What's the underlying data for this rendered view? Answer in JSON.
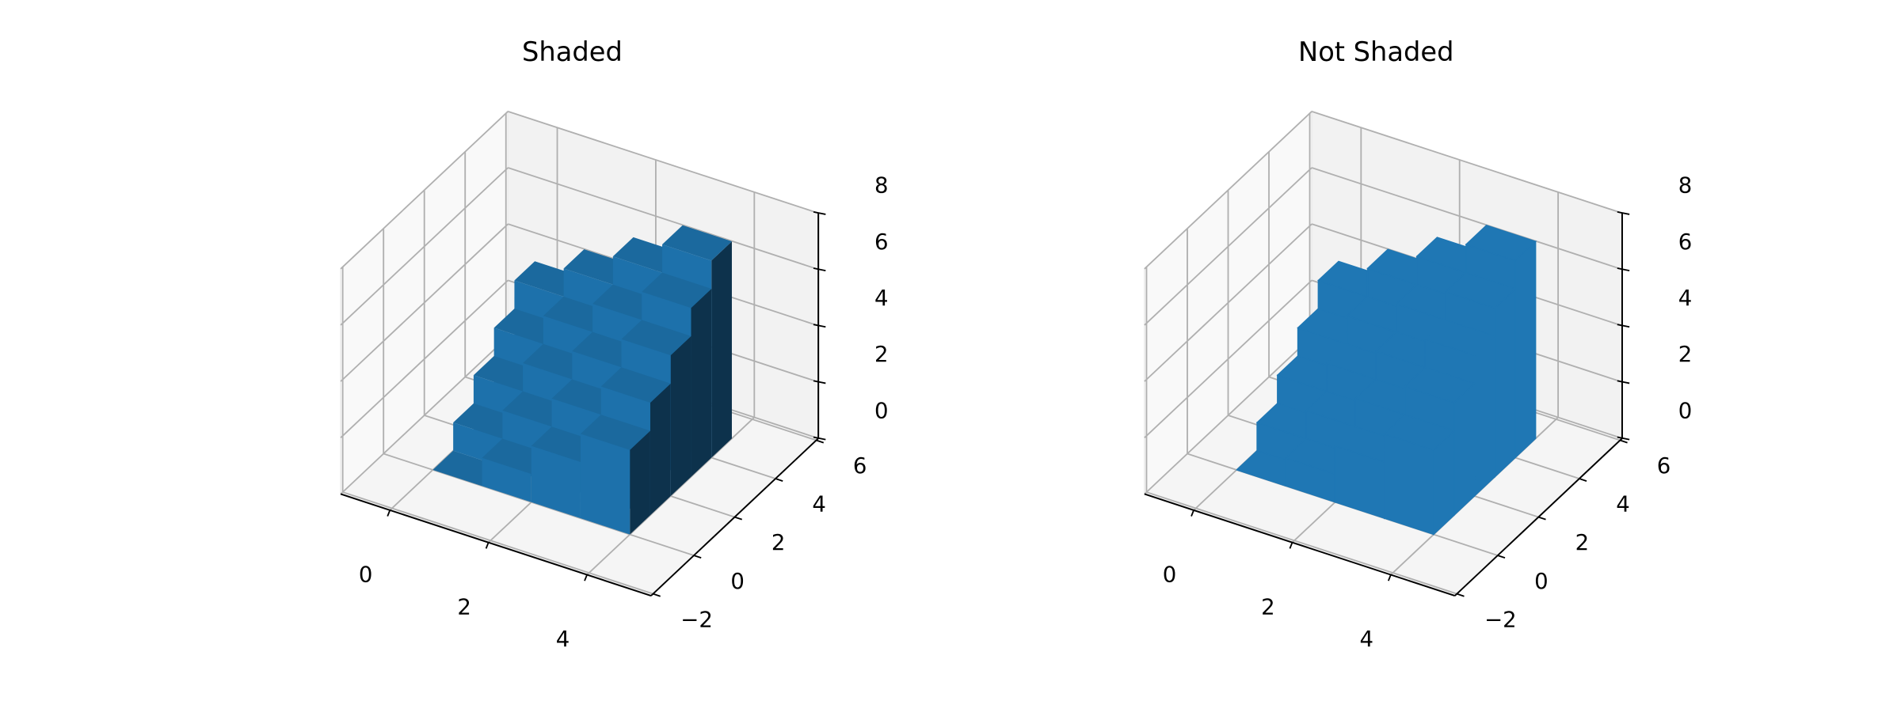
{
  "chart_data": [
    {
      "type": "bar3d",
      "title": "Shaded",
      "shade": true,
      "color": "#1f77b4",
      "x": [
        0,
        1,
        2,
        3,
        0,
        1,
        2,
        3,
        0,
        1,
        2,
        3,
        0,
        1,
        2,
        3,
        0,
        1,
        2,
        3
      ],
      "y": [
        0,
        0,
        0,
        0,
        1,
        1,
        1,
        1,
        2,
        2,
        2,
        2,
        3,
        3,
        3,
        3,
        4,
        4,
        4,
        4
      ],
      "values": [
        0,
        1,
        2,
        3,
        1,
        2,
        3,
        4,
        2,
        3,
        4,
        5,
        3,
        4,
        5,
        6,
        4,
        5,
        6,
        7
      ],
      "xlim": [
        -1,
        5.3
      ],
      "ylim": [
        -2.1,
        6.1
      ],
      "zlim": [
        0,
        8
      ],
      "xticks": [
        0,
        2,
        4
      ],
      "yticks": [
        {
          "value": -2,
          "label": "−2"
        },
        0,
        2,
        4,
        6
      ],
      "zticks": [
        0,
        2,
        4,
        6,
        8
      ],
      "grid": true
    },
    {
      "type": "bar3d",
      "title": "Not Shaded",
      "shade": false,
      "color": "#1f77b4",
      "x": [
        0,
        1,
        2,
        3,
        0,
        1,
        2,
        3,
        0,
        1,
        2,
        3,
        0,
        1,
        2,
        3,
        0,
        1,
        2,
        3
      ],
      "y": [
        0,
        0,
        0,
        0,
        1,
        1,
        1,
        1,
        2,
        2,
        2,
        2,
        3,
        3,
        3,
        3,
        4,
        4,
        4,
        4
      ],
      "values": [
        0,
        1,
        2,
        3,
        1,
        2,
        3,
        4,
        2,
        3,
        4,
        5,
        3,
        4,
        5,
        6,
        4,
        5,
        6,
        7
      ],
      "xlim": [
        -1,
        5.3
      ],
      "ylim": [
        -2.1,
        6.1
      ],
      "zlim": [
        0,
        8
      ],
      "xticks": [
        0,
        2,
        4
      ],
      "yticks": [
        {
          "value": -2,
          "label": "−2"
        },
        0,
        2,
        4,
        6
      ],
      "zticks": [
        0,
        2,
        4,
        6,
        8
      ],
      "grid": true
    }
  ]
}
